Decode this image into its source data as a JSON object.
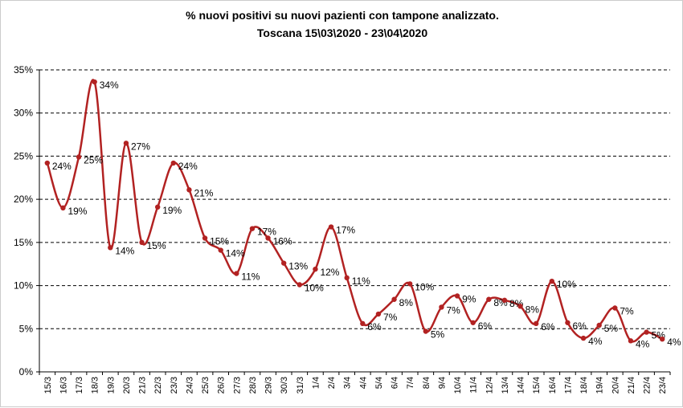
{
  "chart_data": {
    "type": "line",
    "title": "% nuovi positivi su nuovi pazienti con tampone analizzato.",
    "subtitle": "Toscana 15\\03\\2020 - 23\\04\\2020",
    "xlabel": "",
    "ylabel": "",
    "ylim": [
      0,
      35
    ],
    "yticks": [
      0,
      5,
      10,
      15,
      20,
      25,
      30,
      35
    ],
    "ytick_labels": [
      "0%",
      "5%",
      "10%",
      "15%",
      "20%",
      "25%",
      "30%",
      "35%"
    ],
    "grid": "horizontal dashed",
    "line_color": "#b22222",
    "categories": [
      "15/3",
      "16/3",
      "17/3",
      "18/3",
      "19/3",
      "20/3",
      "21/3",
      "22/3",
      "23/3",
      "24/3",
      "25/3",
      "26/3",
      "27/3",
      "28/3",
      "29/3",
      "30/3",
      "31/3",
      "1/4",
      "2/4",
      "3/4",
      "4/4",
      "5/4",
      "6/4",
      "7/4",
      "8/4",
      "9/4",
      "10/4",
      "11/4",
      "12/4",
      "13/4",
      "14/4",
      "15/4",
      "16/4",
      "17/4",
      "18/4",
      "19/4",
      "20/4",
      "21/4",
      "22/4",
      "23/4"
    ],
    "values": [
      24.2,
      19.0,
      24.9,
      33.6,
      14.4,
      26.5,
      15.0,
      19.1,
      24.2,
      21.1,
      15.5,
      14.1,
      11.4,
      16.6,
      15.5,
      12.6,
      10.1,
      11.9,
      16.8,
      10.9,
      5.6,
      6.7,
      8.4,
      10.2,
      4.7,
      7.5,
      8.8,
      5.7,
      8.4,
      8.3,
      7.6,
      5.6,
      10.5,
      5.7,
      3.9,
      5.4,
      7.4,
      3.6,
      4.6,
      3.8
    ],
    "data_labels": [
      "24%",
      "19%",
      "25%",
      "34%",
      "14%",
      "27%",
      "15%",
      "19%",
      "24%",
      "21%",
      "15%",
      "14%",
      "11%",
      "17%",
      "16%",
      "13%",
      "10%",
      "12%",
      "17%",
      "11%",
      "6%",
      "7%",
      "8%",
      "10%",
      "5%",
      "7%",
      "9%",
      "6%",
      "8%",
      "8%",
      "8%",
      "6%",
      "10%",
      "6%",
      "4%",
      "5%",
      "7%",
      "4%",
      "5%",
      "4%"
    ]
  }
}
